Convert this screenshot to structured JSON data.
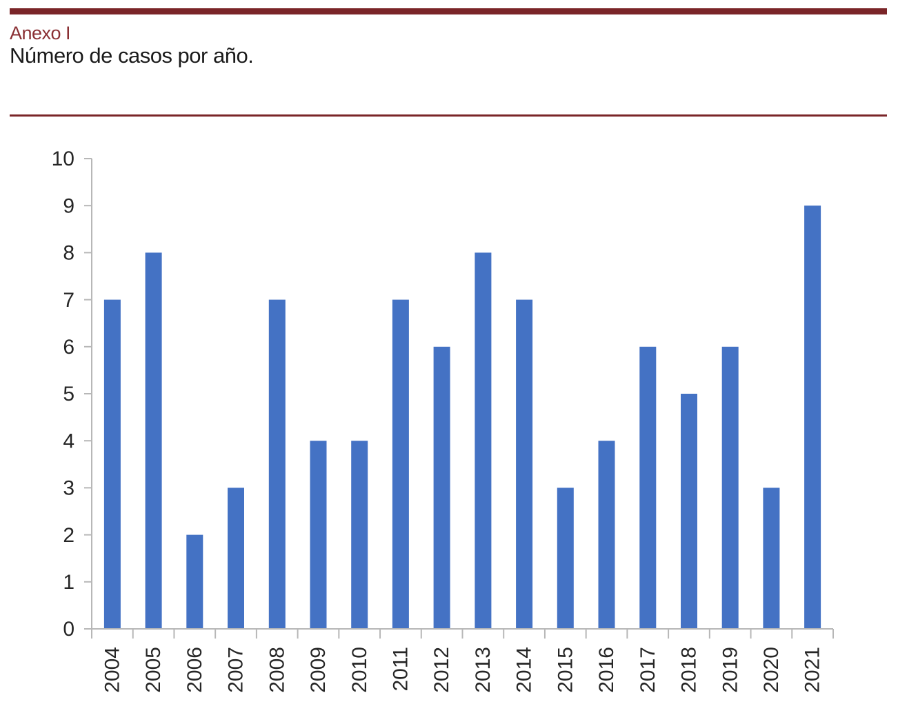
{
  "header": {
    "annex_label": "Anexo I",
    "caption": "Número de casos por año."
  },
  "colors": {
    "accent_maroon_band": "#7A2528",
    "heading_maroon": "#8A2F33",
    "bar_blue": "#4472C4",
    "axis_gray": "#B7B7B7",
    "tick_label_color": "#262626"
  },
  "chart_data": {
    "type": "bar",
    "title": "Número de casos por año.",
    "xlabel": "",
    "ylabel": "",
    "categories": [
      "2004",
      "2005",
      "2006",
      "2007",
      "2008",
      "2009",
      "2010",
      "2011",
      "2012",
      "2013",
      "2014",
      "2015",
      "2016",
      "2017",
      "2018",
      "2019",
      "2020",
      "2021"
    ],
    "values": [
      7,
      8,
      2,
      3,
      7,
      4,
      4,
      7,
      6,
      8,
      7,
      3,
      4,
      6,
      5,
      6,
      3,
      9
    ],
    "ylim": [
      0,
      10
    ],
    "ytick_step": 1,
    "grid": false,
    "legend": "none",
    "x_label_rotation": -90,
    "bar_color": "#4472C4"
  }
}
